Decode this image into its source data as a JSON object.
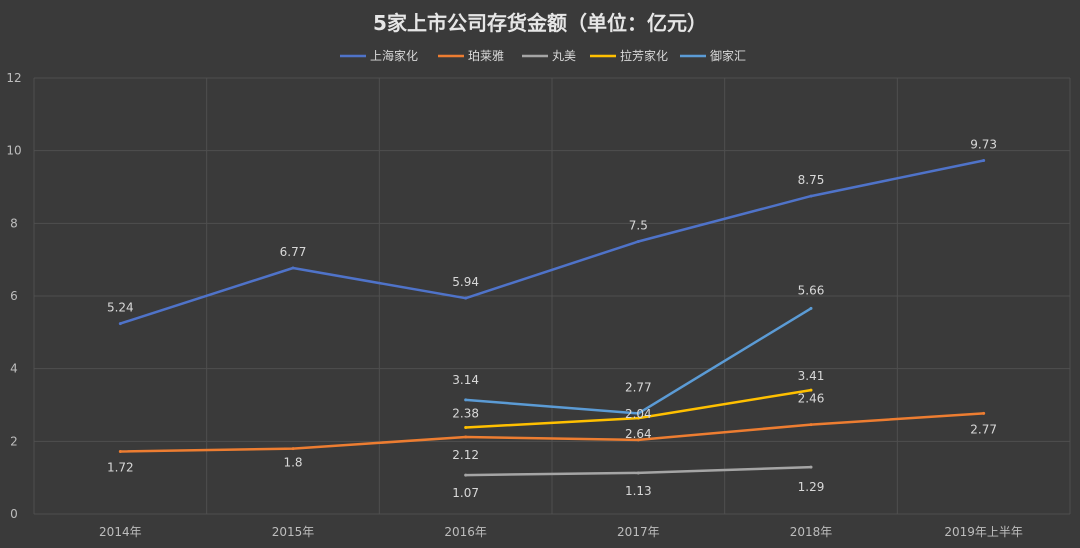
{
  "chart_data": {
    "type": "line",
    "title": "5家上市公司存货金额（单位：亿元）",
    "categories": [
      "2014年",
      "2015年",
      "2016年",
      "2017年",
      "2018年",
      "2019年上半年"
    ],
    "ylim": [
      0,
      12
    ],
    "yticks": [
      0,
      2,
      4,
      6,
      8,
      10,
      12
    ],
    "grid": true,
    "legend_position": "top",
    "series": [
      {
        "name": "上海家化",
        "color": "#4f73c9",
        "values": [
          5.24,
          6.77,
          5.94,
          7.5,
          8.75,
          9.73
        ]
      },
      {
        "name": "珀莱雅",
        "color": "#ed7d31",
        "values": [
          1.72,
          1.8,
          2.12,
          2.04,
          2.46,
          2.77
        ]
      },
      {
        "name": "丸美",
        "color": "#a5a5a5",
        "values": [
          null,
          null,
          1.07,
          1.13,
          1.29,
          null
        ]
      },
      {
        "name": "拉芳家化",
        "color": "#ffc000",
        "values": [
          null,
          null,
          2.38,
          2.64,
          3.41,
          null
        ]
      },
      {
        "name": "御家汇",
        "color": "#5b9bd5",
        "values": [
          null,
          null,
          3.14,
          2.77,
          5.66,
          null
        ]
      }
    ]
  }
}
